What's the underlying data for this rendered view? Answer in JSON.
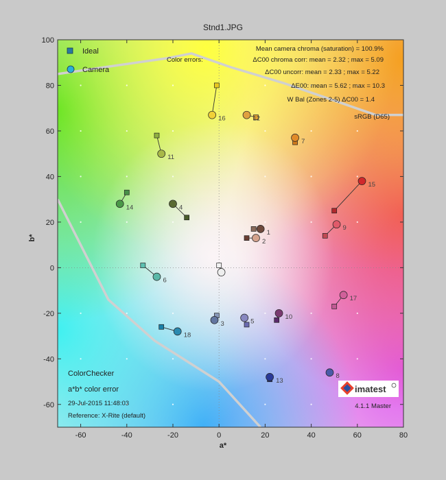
{
  "window": {
    "title": "Stnd1.JPG"
  },
  "legend": {
    "ideal_label": "Ideal",
    "camera_label": "Camera",
    "position": "top-left"
  },
  "info": {
    "chroma_line": "Mean camera chroma (saturation) = 100.9%",
    "color_errors_label": "Color errors:",
    "delta_c_corr": "ΔC00 chroma corr: mean = 2.32 ; max = 5.09",
    "delta_c_uncorr": "ΔC00 uncorr: mean = 2.33 ; max = 5.22",
    "delta_e": "ΔE00: mean = 5.62 ; max = 10.3",
    "wbal": "W Bal (Zones 2-5)  ΔC00 = 1.4",
    "colorspace": "sRGB (D65)"
  },
  "footer": {
    "chart_name": "ColorChecker",
    "error_type": "a*b* color error",
    "timestamp": "29-Jul-2015 11:48:03",
    "reference": "Reference: X-Rite (default)",
    "brand": "imatest",
    "version": "4.1.1 Master"
  },
  "colors": {
    "frame_bg": "#c9c9c9",
    "gamut_line": "#d0d0d0",
    "logo_red": "#e8412c",
    "logo_blue": "#2b4fa0"
  },
  "chart_data": {
    "type": "scatter",
    "title": "Stnd1.JPG",
    "xlabel": "a*",
    "ylabel": "b*",
    "xlim": [
      -70,
      80
    ],
    "ylim": [
      -70,
      100
    ],
    "xticks": [
      -60,
      -40,
      -20,
      0,
      20,
      40,
      60,
      80
    ],
    "yticks": [
      -60,
      -40,
      -20,
      0,
      20,
      40,
      60,
      80,
      100
    ],
    "grid": "dots",
    "series": [
      {
        "name": "Ideal",
        "marker": "square"
      },
      {
        "name": "Camera",
        "marker": "circle"
      }
    ],
    "patches": [
      {
        "id": "1",
        "ideal": [
          15,
          17
        ],
        "camera": [
          18,
          17
        ],
        "ideal_color": "#8a6a5a",
        "camera_color": "#6e4a3c"
      },
      {
        "id": "2",
        "ideal": [
          12,
          13
        ],
        "camera": [
          16,
          13
        ],
        "ideal_color": "#6a3e33",
        "camera_color": "#d4a28c"
      },
      {
        "id": "3",
        "ideal": [
          -1,
          -21
        ],
        "camera": [
          -2,
          -23
        ],
        "ideal_color": "#8898b8",
        "camera_color": "#6276a0"
      },
      {
        "id": "4",
        "ideal": [
          -14,
          22
        ],
        "camera": [
          -20,
          28
        ],
        "ideal_color": "#4a5c2c",
        "camera_color": "#5a6a32"
      },
      {
        "id": "5",
        "ideal": [
          12,
          -25
        ],
        "camera": [
          11,
          -22
        ],
        "ideal_color": "#6a6ab0",
        "camera_color": "#8888c0"
      },
      {
        "id": "6",
        "ideal": [
          -33,
          1
        ],
        "camera": [
          -27,
          -4
        ],
        "ideal_color": "#5cc0b0",
        "camera_color": "#5ab8a8"
      },
      {
        "id": "7",
        "ideal": [
          33,
          55
        ],
        "camera": [
          33,
          57
        ],
        "ideal_color": "#d07a1c",
        "camera_color": "#e08a2a"
      },
      {
        "id": "8",
        "ideal": [
          48,
          -46
        ],
        "camera": [
          48,
          -46
        ],
        "ideal_color": "#4a5aa8",
        "camera_color": "#4a5aa8"
      },
      {
        "id": "9",
        "ideal": [
          46,
          14
        ],
        "camera": [
          51,
          19
        ],
        "ideal_color": "#c04a54",
        "camera_color": "#e05a6a"
      },
      {
        "id": "10",
        "ideal": [
          25,
          -23
        ],
        "camera": [
          26,
          -20
        ],
        "ideal_color": "#5a2a6a",
        "camera_color": "#7a3a70"
      },
      {
        "id": "11",
        "ideal": [
          -27,
          58
        ],
        "camera": [
          -25,
          50
        ],
        "ideal_color": "#90b040",
        "camera_color": "#a8b848"
      },
      {
        "id": "12",
        "ideal": [
          16,
          66
        ],
        "camera": [
          12,
          67
        ],
        "ideal_color": "#e0a030",
        "camera_color": "#e0a040"
      },
      {
        "id": "13",
        "ideal": [
          22,
          -49
        ],
        "camera": [
          22,
          -48
        ],
        "ideal_color": "#2a3a8a",
        "camera_color": "#2a3a98"
      },
      {
        "id": "14",
        "ideal": [
          -40,
          33
        ],
        "camera": [
          -43,
          28
        ],
        "ideal_color": "#489048",
        "camera_color": "#4a9848"
      },
      {
        "id": "15",
        "ideal": [
          50,
          25
        ],
        "camera": [
          62,
          38
        ],
        "ideal_color": "#b0282c",
        "camera_color": "#d0282c"
      },
      {
        "id": "16",
        "ideal": [
          -1,
          80
        ],
        "camera": [
          -3,
          67
        ],
        "ideal_color": "#e8c820",
        "camera_color": "#f0d038"
      },
      {
        "id": "17",
        "ideal": [
          50,
          -17
        ],
        "camera": [
          54,
          -12
        ],
        "ideal_color": "#c05a94",
        "camera_color": "#d0609a"
      },
      {
        "id": "18",
        "ideal": [
          -25,
          -26
        ],
        "camera": [
          -18,
          -28
        ],
        "ideal_color": "#1a80a8",
        "camera_color": "#2a8ab0"
      },
      {
        "id": "19",
        "ideal": [
          0,
          1
        ],
        "camera": [
          1,
          -2
        ],
        "ideal_color": "#f2f2f2",
        "camera_color": "#eeeeee"
      }
    ],
    "gamut_line": [
      [
        -70,
        85
      ],
      [
        -22,
        92
      ],
      [
        -12,
        94
      ],
      [
        5,
        88
      ],
      [
        28,
        81
      ],
      [
        68,
        67
      ],
      [
        80,
        67
      ]
    ],
    "gamut_line_lower": [
      [
        -70,
        30
      ],
      [
        -48,
        -14
      ],
      [
        -28,
        -32
      ],
      [
        0,
        -50
      ],
      [
        18,
        -70
      ]
    ]
  }
}
